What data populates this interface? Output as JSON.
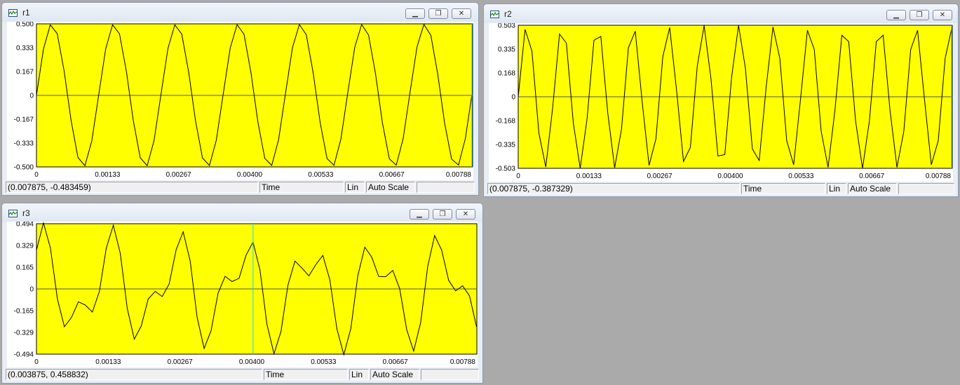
{
  "windows": [
    {
      "id": "r1",
      "title": "r1",
      "controls": {
        "minimize": "▁",
        "restore": "❐",
        "close": "✕"
      },
      "status": {
        "coords": "(0.007875, -0.483459)",
        "axis": "Time",
        "scale": "Lin",
        "mode": "Auto Scale",
        "extra": ""
      },
      "chart_data": {
        "type": "line",
        "xlim": [
          0,
          0.00788
        ],
        "ylim": [
          -0.5,
          0.5
        ],
        "yticks": [
          "0.500",
          "0.333",
          "0.167",
          "0",
          "-0.167",
          "-0.333",
          "-0.500"
        ],
        "xticks": [
          "0",
          "0.00133",
          "0.00267",
          "0.00400",
          "0.00533",
          "0.00667",
          "0.00788"
        ],
        "cursor_x": 0.007875,
        "signal": {
          "amplitude": 0.5,
          "frequency": 890,
          "phase": 0.0
        }
      }
    },
    {
      "id": "r2",
      "title": "r2",
      "controls": {
        "minimize": "▁",
        "restore": "❐",
        "close": "✕"
      },
      "status": {
        "coords": "(0.007875, -0.387329)",
        "axis": "Time",
        "scale": "Lin",
        "mode": "Auto Scale",
        "extra": ""
      },
      "chart_data": {
        "type": "line",
        "xlim": [
          0,
          0.00788
        ],
        "ylim": [
          -0.503,
          0.503
        ],
        "yticks": [
          "0.503",
          "0.335",
          "0.168",
          "0",
          "-0.168",
          "-0.335",
          "-0.503"
        ],
        "xticks": [
          "0",
          "0.00133",
          "0.00267",
          "0.00400",
          "0.00533",
          "0.00667",
          "0.00788"
        ],
        "cursor_x": 0.007875,
        "signal": {
          "amplitude": 0.503,
          "frequency": 1560,
          "phase": 0.0
        }
      }
    },
    {
      "id": "r3",
      "title": "r3",
      "controls": {
        "minimize": "▁",
        "restore": "❐",
        "close": "✕"
      },
      "status": {
        "coords": "(0.003875, 0.458832)",
        "axis": "Time",
        "scale": "Lin",
        "mode": "Auto Scale",
        "extra": ""
      },
      "chart_data": {
        "type": "line",
        "xlim": [
          0,
          0.00788
        ],
        "ylim": [
          -0.494,
          0.494
        ],
        "yticks": [
          "0.494",
          "0.329",
          "0.165",
          "0",
          "-0.165",
          "-0.329",
          "-0.494"
        ],
        "xticks": [
          "0",
          "0.00133",
          "0.00267",
          "0.00400",
          "0.00533",
          "0.00667",
          "0.00788"
        ],
        "cursor_x": 0.003875,
        "signal": {
          "components": [
            {
              "amplitude": 0.3,
              "frequency": 840,
              "phase": 0.9
            },
            {
              "amplitude": 0.2,
              "frequency": 1580,
              "phase": 0.3
            }
          ]
        }
      }
    }
  ],
  "colors": {
    "plot_bg": "#ffff00",
    "trace": "#000000",
    "zero_line": "#555555",
    "cursor": "#22d3ee",
    "desktop": "#aaaaaa"
  }
}
